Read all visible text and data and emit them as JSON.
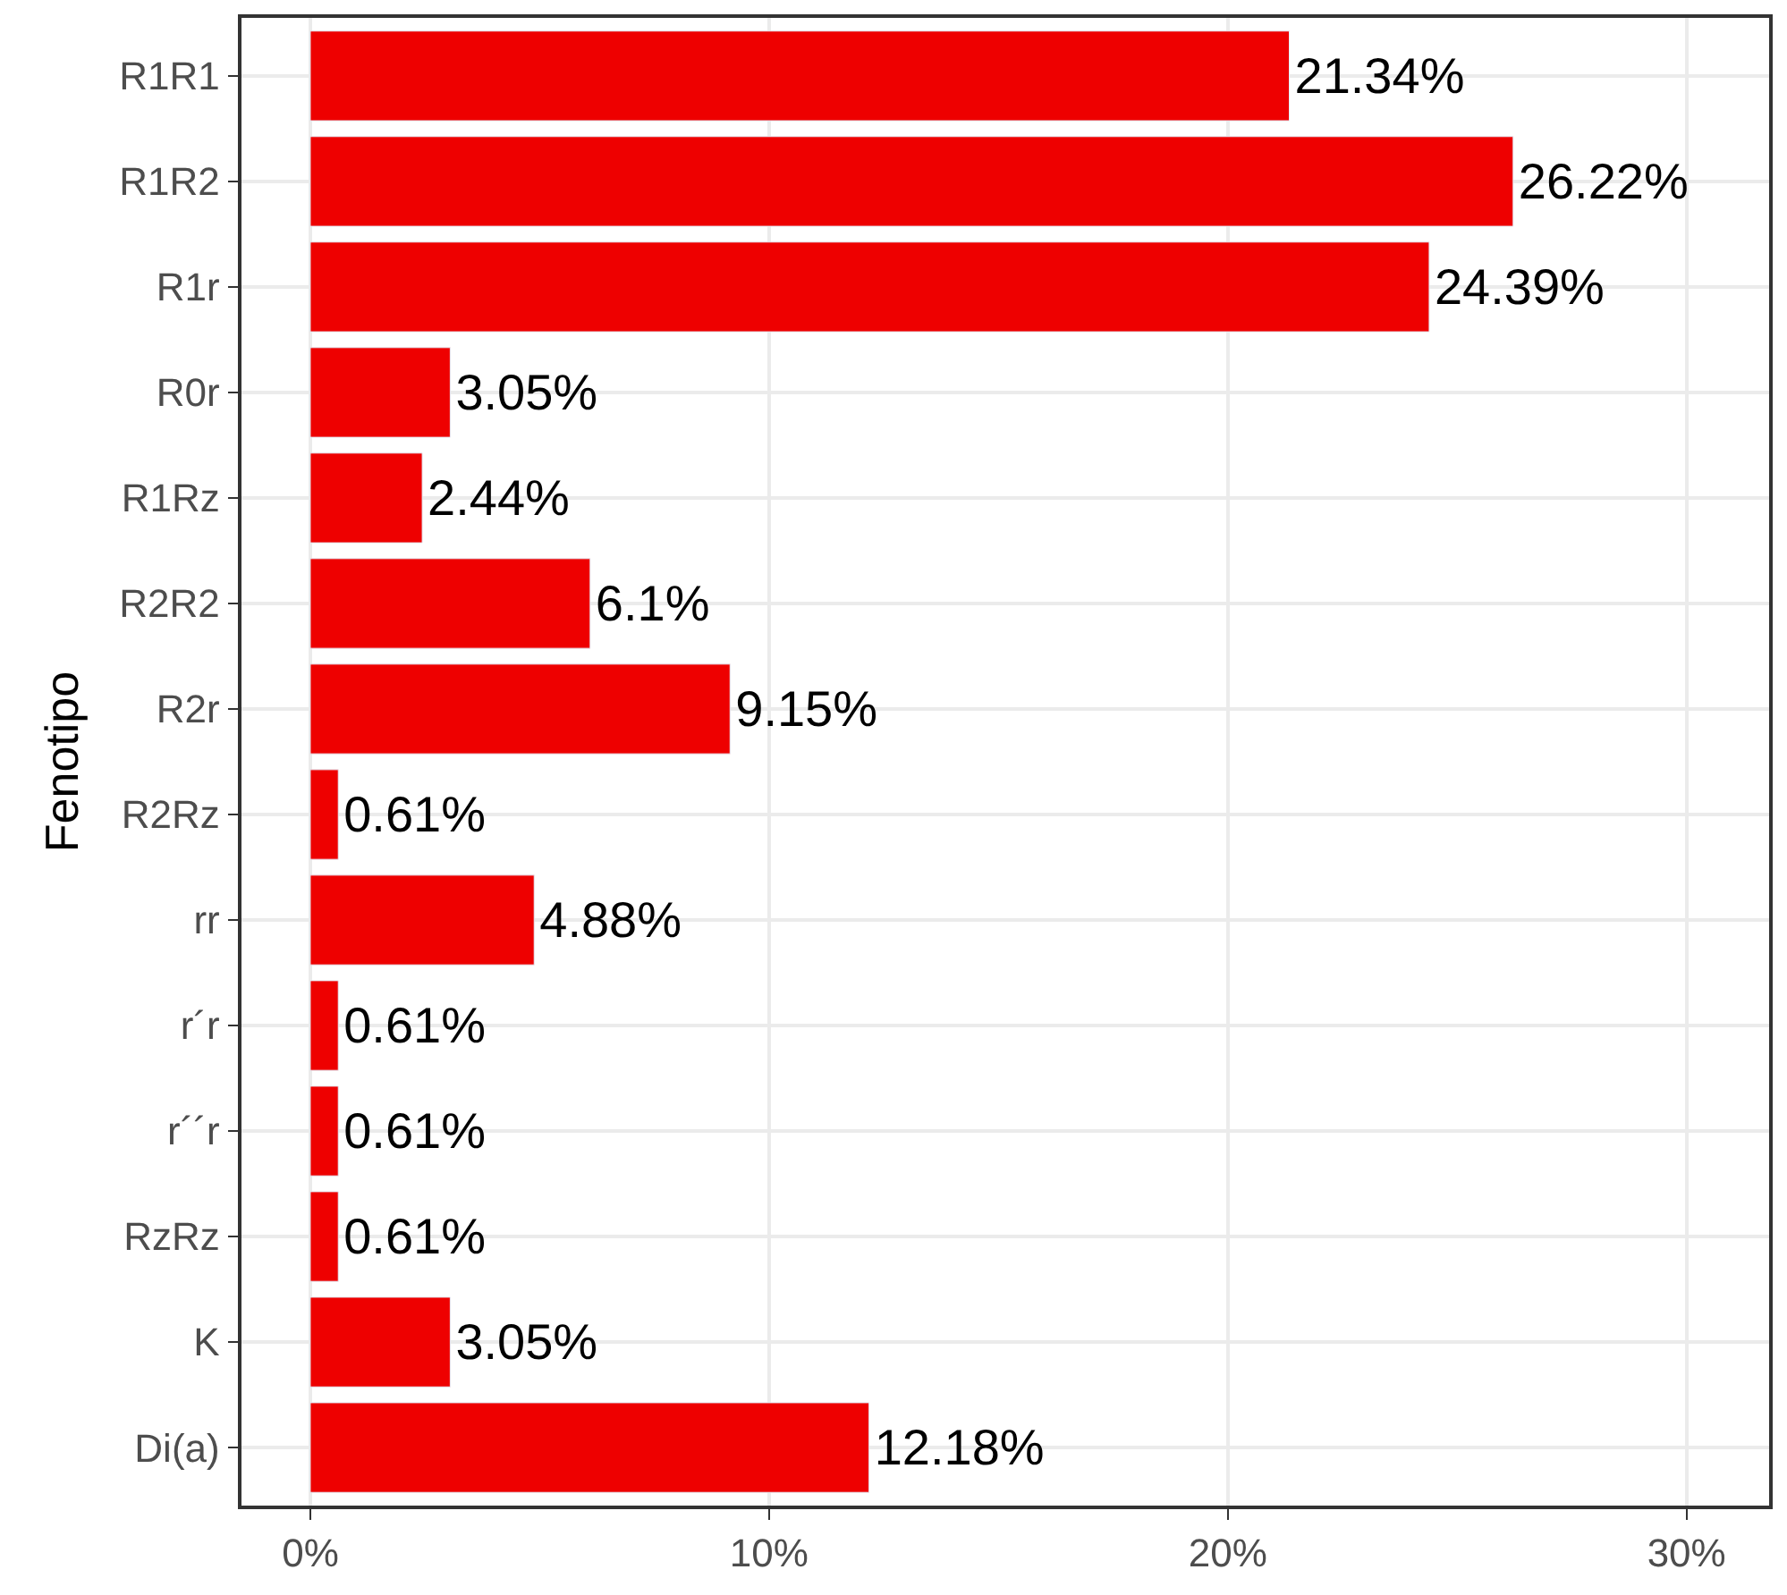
{
  "chart_data": {
    "type": "bar",
    "orientation": "horizontal",
    "ylabel": "Fenotipo",
    "categories": [
      "R1R1",
      "R1R2",
      "R1r",
      "R0r",
      "R1Rz",
      "R2R2",
      "R2r",
      "R2Rz",
      "rr",
      "r´r",
      "r´´r",
      "RzRz",
      "K",
      "Di(a)"
    ],
    "series": [
      {
        "color": "#ee0000",
        "values": [
          21.34,
          26.22,
          24.39,
          3.05,
          2.44,
          6.1,
          9.15,
          0.61,
          4.88,
          0.61,
          0.61,
          0.61,
          3.05,
          12.18
        ],
        "value_labels": [
          "21.34%",
          "26.22%",
          "24.39%",
          "3.05%",
          "2.44%",
          "6.1%",
          "9.15%",
          "0.61%",
          "4.88%",
          "0.61%",
          "0.61%",
          "0.61%",
          "3.05%",
          "12.18%"
        ]
      }
    ],
    "xlim": [
      -1.5,
      31.8
    ],
    "xticks": [
      {
        "value": 0,
        "label": "0%"
      },
      {
        "value": 10,
        "label": "10%"
      },
      {
        "value": 20,
        "label": "20%"
      },
      {
        "value": 30,
        "label": "30%"
      }
    ],
    "grid": true
  }
}
